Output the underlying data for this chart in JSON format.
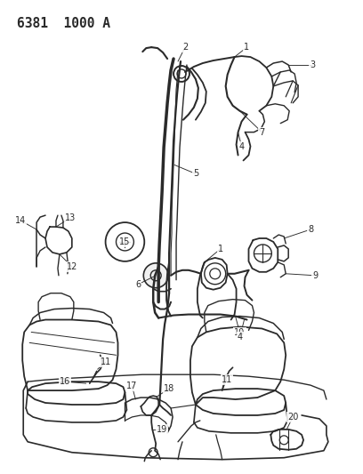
{
  "title": "6381  1000 A",
  "bg_color": "#ffffff",
  "line_color": "#2a2a2a",
  "label_fontsize": 7.0,
  "title_fontsize": 10.5
}
